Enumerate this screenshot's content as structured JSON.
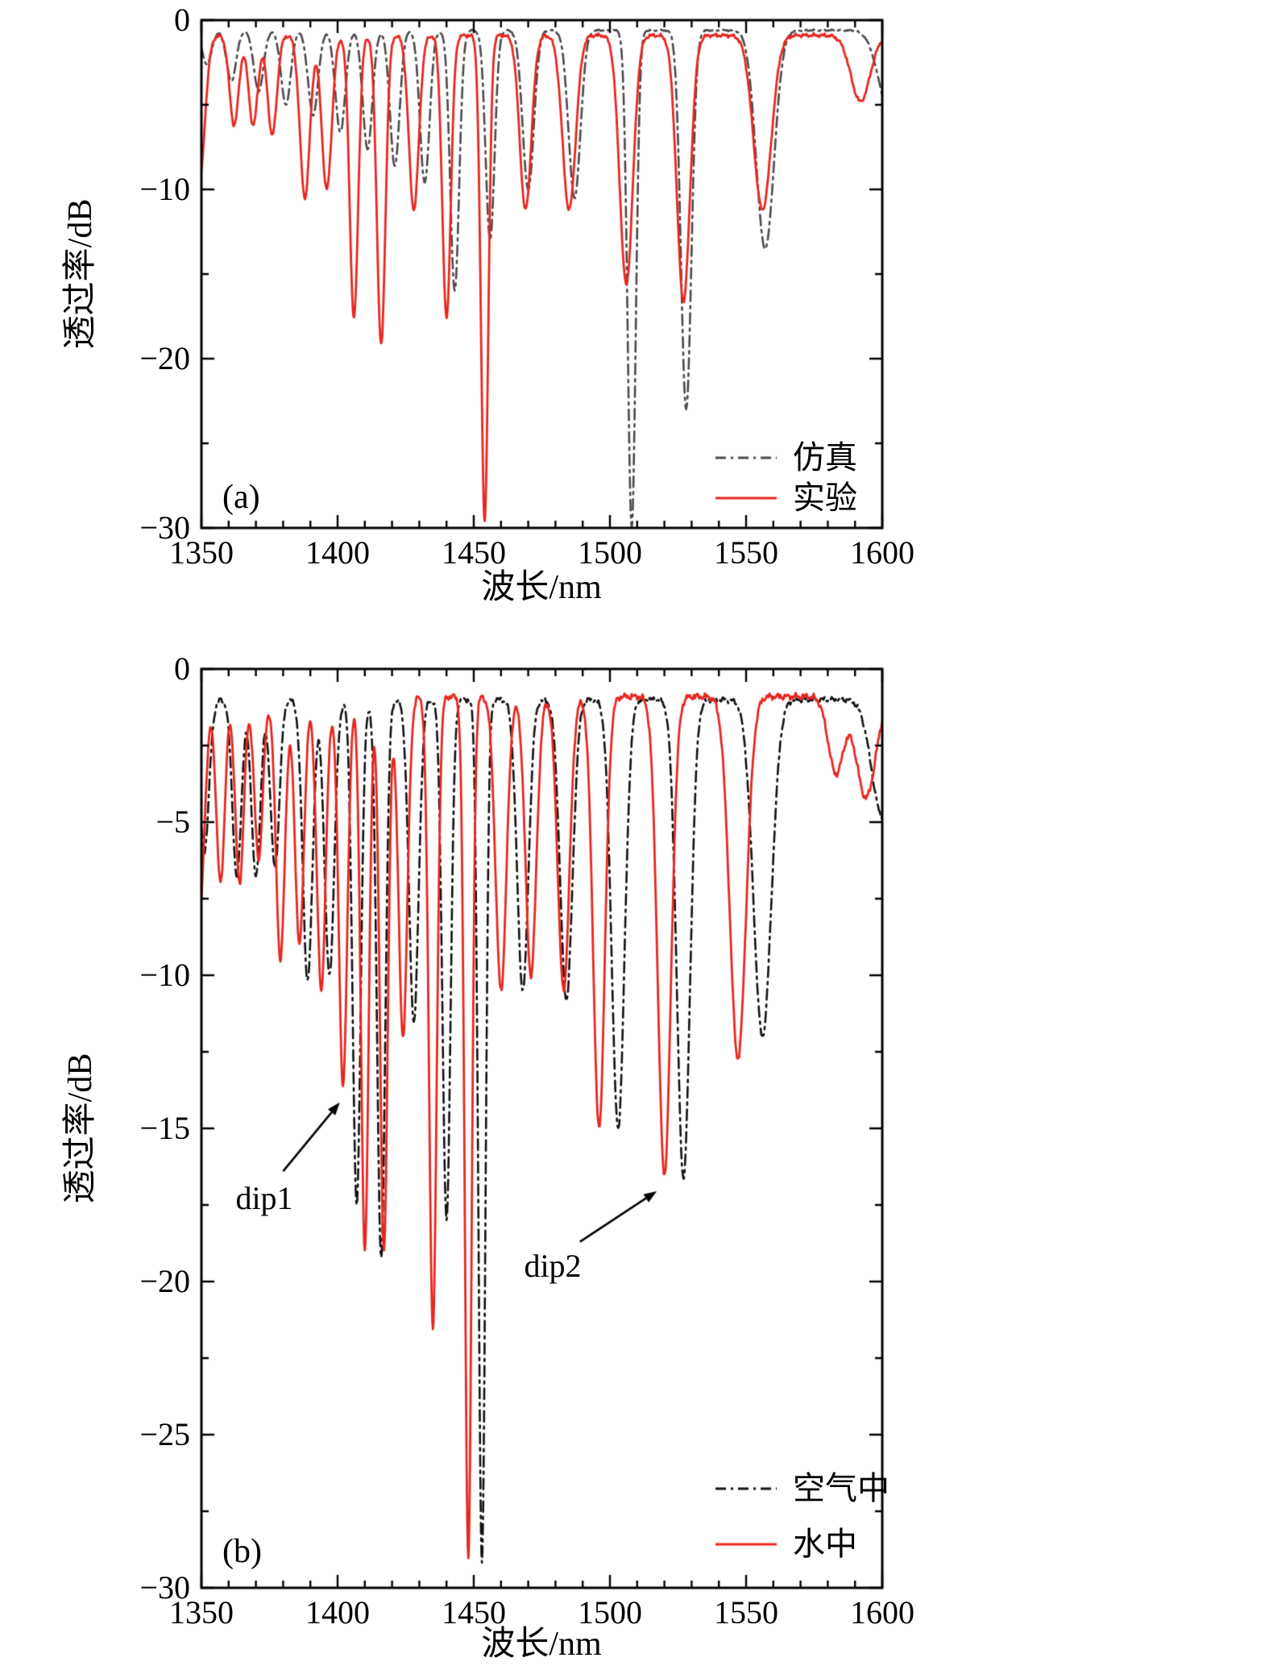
{
  "figure": {
    "description": "Transmission spectra, two stacked panels",
    "accent_red": "#e8271f",
    "sim_gray": "#4a4a4a",
    "air_black": "#111111"
  },
  "chart_data": [
    {
      "id": "panel-a",
      "type": "line",
      "panel_label": "(a)",
      "xlabel": "波长/nm",
      "ylabel": "透过率/dB",
      "xlim": [
        1350,
        1600
      ],
      "ylim": [
        -30,
        0
      ],
      "x_ticks": [
        {
          "v": 1350,
          "label": "1350"
        },
        {
          "v": 1400,
          "label": "1400"
        },
        {
          "v": 1450,
          "label": "1450"
        },
        {
          "v": 1500,
          "label": "1500"
        },
        {
          "v": 1550,
          "label": "1550"
        },
        {
          "v": 1600,
          "label": "1600"
        }
      ],
      "x_minor_step": 10,
      "y_ticks": [
        {
          "v": 0,
          "label": "0"
        },
        {
          "v": -10,
          "label": "−10"
        },
        {
          "v": -20,
          "label": "−20"
        },
        {
          "v": -30,
          "label": "−30"
        }
      ],
      "y_minor_step": 5,
      "legend": [
        {
          "label": "仿真",
          "color": "#4a4a4a",
          "dash": true
        },
        {
          "label": "实验",
          "color": "#e8271f",
          "dash": false
        }
      ],
      "series": [
        {
          "name": "仿真",
          "color": "#4a4a4a",
          "dash": true,
          "baseline": -0.6,
          "noise": 0.05,
          "dips": [
            [
              1352,
              -2.6,
              2.5
            ],
            [
              1361,
              -3.6,
              2.5
            ],
            [
              1371,
              -4.2,
              2.5
            ],
            [
              1381,
              -5.0,
              2.5
            ],
            [
              1391,
              -5.6,
              2.6
            ],
            [
              1401,
              -6.6,
              2.6
            ],
            [
              1411,
              -7.6,
              2.5
            ],
            [
              1421,
              -8.6,
              2.5
            ],
            [
              1432,
              -9.6,
              2.5
            ],
            [
              1443,
              -16.0,
              2.3
            ],
            [
              1456,
              -13.0,
              2.3
            ],
            [
              1470,
              -10.0,
              2.9
            ],
            [
              1487,
              -10.5,
              3.1
            ],
            [
              1508,
              -30.0,
              2.1
            ],
            [
              1528,
              -23.0,
              2.7
            ],
            [
              1557,
              -13.5,
              4.6
            ],
            [
              1603,
              -5.5,
              6.0
            ]
          ]
        },
        {
          "name": "实验",
          "color": "#e8271f",
          "dash": false,
          "baseline": -0.9,
          "noise": 0.11,
          "dips": [
            [
              1349,
              -10.0,
              3.0
            ],
            [
              1362,
              -6.2,
              2.4
            ],
            [
              1369,
              -6.2,
              2.4
            ],
            [
              1376,
              -6.8,
              2.4
            ],
            [
              1388,
              -10.5,
              2.6
            ],
            [
              1396,
              -10.0,
              2.6
            ],
            [
              1406,
              -17.6,
              2.2
            ],
            [
              1416,
              -19.2,
              2.2
            ],
            [
              1428,
              -11.2,
              2.6
            ],
            [
              1440,
              -17.6,
              2.2
            ],
            [
              1454,
              -29.5,
              1.9
            ],
            [
              1469,
              -11.2,
              3.0
            ],
            [
              1485,
              -11.2,
              3.4
            ],
            [
              1506,
              -15.6,
              3.4
            ],
            [
              1527,
              -16.6,
              3.4
            ],
            [
              1556,
              -11.2,
              4.6
            ],
            [
              1592,
              -4.8,
              5.0
            ]
          ]
        }
      ]
    },
    {
      "id": "panel-b",
      "type": "line",
      "panel_label": "(b)",
      "xlabel": "波长/nm",
      "ylabel": "透过率/dB",
      "xlim": [
        1350,
        1600
      ],
      "ylim": [
        -30,
        0
      ],
      "x_ticks": [
        {
          "v": 1350,
          "label": "1350"
        },
        {
          "v": 1400,
          "label": "1400"
        },
        {
          "v": 1450,
          "label": "1450"
        },
        {
          "v": 1500,
          "label": "1500"
        },
        {
          "v": 1550,
          "label": "1550"
        },
        {
          "v": 1600,
          "label": "1600"
        }
      ],
      "x_minor_step": 10,
      "y_ticks": [
        {
          "v": 0,
          "label": "0"
        },
        {
          "v": -5,
          "label": "−5"
        },
        {
          "v": -10,
          "label": "−10"
        },
        {
          "v": -15,
          "label": "−15"
        },
        {
          "v": -20,
          "label": "−20"
        },
        {
          "v": -25,
          "label": "−25"
        },
        {
          "v": -30,
          "label": "−30"
        }
      ],
      "y_minor_step": 2.5,
      "legend": [
        {
          "label": "空气中",
          "color": "#111111",
          "dash": true
        },
        {
          "label": "水中",
          "color": "#e8271f",
          "dash": false
        }
      ],
      "series": [
        {
          "name": "空气中",
          "color": "#111111",
          "dash": true,
          "baseline": -1.0,
          "noise": 0.09,
          "dips": [
            [
              1351,
              -6.0,
              2.5
            ],
            [
              1363,
              -6.8,
              2.3
            ],
            [
              1370,
              -6.8,
              2.3
            ],
            [
              1377,
              -6.5,
              2.3
            ],
            [
              1389,
              -10.2,
              2.5
            ],
            [
              1397,
              -10.0,
              2.5
            ],
            [
              1407,
              -17.5,
              2.1
            ],
            [
              1416,
              -19.3,
              2.1
            ],
            [
              1428,
              -11.5,
              2.5
            ],
            [
              1440,
              -18.0,
              2.1
            ],
            [
              1453,
              -29.2,
              1.8
            ],
            [
              1468,
              -10.5,
              2.9
            ],
            [
              1484,
              -10.8,
              3.2
            ],
            [
              1503,
              -15.0,
              3.3
            ],
            [
              1527,
              -16.6,
              3.4
            ],
            [
              1556,
              -12.0,
              4.6
            ],
            [
              1600,
              -4.8,
              5.5
            ]
          ]
        },
        {
          "name": "水中",
          "color": "#e8271f",
          "dash": false,
          "baseline": -0.9,
          "noise": 0.11,
          "dips": [
            [
              1349,
              -8.5,
              2.8
            ],
            [
              1357,
              -7.0,
              2.2
            ],
            [
              1364,
              -7.0,
              2.2
            ],
            [
              1371,
              -6.2,
              2.2
            ],
            [
              1379,
              -9.5,
              2.3
            ],
            [
              1386,
              -9.0,
              2.3
            ],
            [
              1394,
              -10.5,
              2.3
            ],
            [
              1402,
              -13.6,
              2.2
            ],
            [
              1410,
              -19.0,
              2.0
            ],
            [
              1417,
              -19.0,
              2.0
            ],
            [
              1424,
              -12.0,
              2.3
            ],
            [
              1435,
              -21.5,
              2.0
            ],
            [
              1448,
              -29.0,
              1.8
            ],
            [
              1460,
              -10.5,
              2.8
            ],
            [
              1471,
              -10.0,
              2.8
            ],
            [
              1483,
              -10.5,
              3.0
            ],
            [
              1496,
              -15.0,
              3.0
            ],
            [
              1520,
              -16.5,
              3.4
            ],
            [
              1547,
              -12.7,
              4.2
            ],
            [
              1583,
              -3.4,
              4.0
            ],
            [
              1594,
              -4.2,
              5.0
            ]
          ]
        }
      ],
      "annotations": [
        {
          "text": "dip1",
          "text_at": [
            1373,
            -17.3
          ],
          "arrow_from": [
            1380,
            -16.4
          ],
          "arrow_to": [
            1400.8,
            -14.15
          ]
        },
        {
          "text": "dip2",
          "text_at": [
            1479,
            -19.5
          ],
          "arrow_from": [
            1489,
            -18.7
          ],
          "arrow_to": [
            1517.2,
            -17.05
          ]
        }
      ]
    }
  ]
}
